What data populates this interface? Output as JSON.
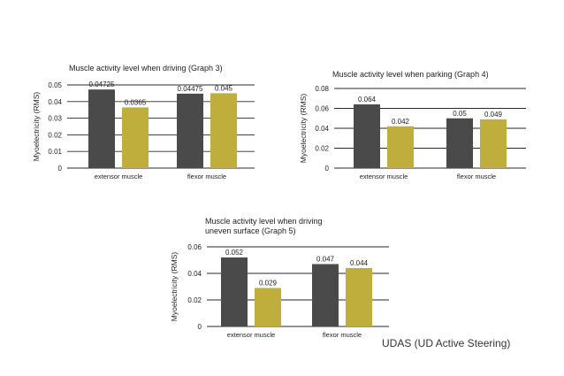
{
  "caption": "UDAS (UD Active Steering)",
  "colors": {
    "dark": "#4a4a4a",
    "gold": "#bfae3c",
    "grid": "#2a2a2a"
  },
  "chart_data": [
    {
      "type": "bar",
      "title": [
        "Muscle activity level when driving (Graph 3)"
      ],
      "ylabel": "Myoelectricity (RMS)",
      "categories": [
        "extensor muscle",
        "flexor muscle"
      ],
      "ylim": [
        0,
        0.05
      ],
      "yticks": [
        0,
        0.01,
        0.02,
        0.03,
        0.04,
        0.05
      ],
      "ytick_labels": [
        "0",
        "0.01",
        "0.02",
        "0.03",
        "0.04",
        "0.05"
      ],
      "series": [
        {
          "values": [
            0.04725,
            0.04475
          ],
          "labels": [
            "0.04725",
            "0.04475"
          ],
          "color": "#4a4a4a"
        },
        {
          "values": [
            0.0365,
            0.045
          ],
          "labels": [
            "0.0365",
            "0.045"
          ],
          "color": "#bfae3c"
        }
      ]
    },
    {
      "type": "bar",
      "title": [
        "Muscle activity level when parking (Graph 4)"
      ],
      "ylabel": "Myoelectricity (RMS)",
      "categories": [
        "extensor muscle",
        "flexor muscle"
      ],
      "ylim": [
        0,
        0.08
      ],
      "yticks": [
        0,
        0.02,
        0.04,
        0.06,
        0.08
      ],
      "ytick_labels": [
        "0",
        "0.02",
        "0.04",
        "0.06",
        "0.08"
      ],
      "series": [
        {
          "values": [
            0.064,
            0.05
          ],
          "labels": [
            "0.064",
            "0.05"
          ],
          "color": "#4a4a4a"
        },
        {
          "values": [
            0.042,
            0.049
          ],
          "labels": [
            "0.042",
            "0.049"
          ],
          "color": "#bfae3c"
        }
      ]
    },
    {
      "type": "bar",
      "title": [
        "Muscle activity level when driving",
        "uneven surface (Graph 5)"
      ],
      "ylabel": "Myoelectricity (RMS)",
      "categories": [
        "extensor muscle",
        "flexor muscle"
      ],
      "ylim": [
        0,
        0.06
      ],
      "yticks": [
        0,
        0.02,
        0.04,
        0.06
      ],
      "ytick_labels": [
        "0",
        "0.02",
        "0.04",
        "0.06"
      ],
      "series": [
        {
          "values": [
            0.052,
            0.047
          ],
          "labels": [
            "0.052",
            "0.047"
          ],
          "color": "#4a4a4a"
        },
        {
          "values": [
            0.029,
            0.044
          ],
          "labels": [
            "0.029",
            "0.044"
          ],
          "color": "#bfae3c"
        }
      ]
    }
  ]
}
